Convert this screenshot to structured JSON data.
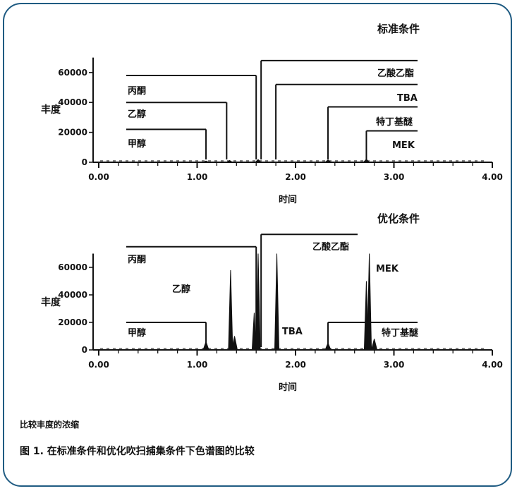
{
  "chart_data": [
    {
      "type": "line",
      "title": "标准条件",
      "xlabel": "时间",
      "ylabel": "丰度",
      "xlim": [
        0.0,
        4.0
      ],
      "ylim": [
        0,
        70000
      ],
      "x_ticks": [
        "0.00",
        "1.00",
        "2.00",
        "3.00",
        "4.00"
      ],
      "y_ticks": [
        "0",
        "20000",
        "40000",
        "60000"
      ],
      "peaks": [
        {
          "x": 1.09,
          "y": 800
        },
        {
          "x": 1.33,
          "y": 1200
        },
        {
          "x": 1.62,
          "y": 1800
        },
        {
          "x": 2.33,
          "y": 1500
        },
        {
          "x": 2.72,
          "y": 2000
        }
      ],
      "annotations": [
        {
          "label": "甲醇",
          "peak_x": 1.09,
          "level": 22000
        },
        {
          "label": "乙醇",
          "peak_x": 1.3,
          "level": 40000
        },
        {
          "label": "丙酮",
          "peak_x": 1.6,
          "level": 58000
        },
        {
          "label": "乙酸乙酯",
          "peak_x": 1.65,
          "level": 68000
        },
        {
          "label": "TBA",
          "peak_x": 1.8,
          "level": 52000
        },
        {
          "label": "特丁基醚",
          "peak_x": 2.33,
          "level": 37000
        },
        {
          "label": "MEK",
          "peak_x": 2.72,
          "level": 21000
        }
      ]
    },
    {
      "type": "line",
      "title": "优化条件",
      "xlabel": "时间",
      "ylabel": "丰度",
      "xlim": [
        0.0,
        4.0
      ],
      "ylim": [
        0,
        70000
      ],
      "x_ticks": [
        "0.00",
        "1.00",
        "2.00",
        "3.00",
        "4.00"
      ],
      "y_ticks": [
        "0",
        "20000",
        "40000",
        "60000"
      ],
      "peaks": [
        {
          "x": 1.09,
          "y": 6000
        },
        {
          "x": 1.34,
          "y": 58000
        },
        {
          "x": 1.38,
          "y": 10000
        },
        {
          "x": 1.58,
          "y": 27000
        },
        {
          "x": 1.62,
          "y": 70000
        },
        {
          "x": 1.81,
          "y": 70000
        },
        {
          "x": 2.33,
          "y": 5000
        },
        {
          "x": 2.72,
          "y": 50000
        },
        {
          "x": 2.75,
          "y": 70000
        },
        {
          "x": 2.8,
          "y": 8000
        }
      ],
      "annotations": [
        {
          "label": "甲醇",
          "peak_x": 1.09,
          "level": 20000
        },
        {
          "label": "乙醇",
          "peak_x": 1.34,
          "level": null
        },
        {
          "label": "丙酮",
          "peak_x": 1.6,
          "level": 75000
        },
        {
          "label": "乙酸乙酯",
          "peak_x": 1.65,
          "level": 84000
        },
        {
          "label": "TBA",
          "peak_x": 1.81,
          "level": null
        },
        {
          "label": "MEK",
          "peak_x": 2.75,
          "level": null
        },
        {
          "label": "特丁基醚",
          "peak_x": 2.33,
          "level": 20000
        }
      ]
    }
  ],
  "captions": {
    "note": "比较丰度的浓缩",
    "figure": "图 1. 在标准条件和优化吹扫捕集条件下色谱图的比较"
  }
}
